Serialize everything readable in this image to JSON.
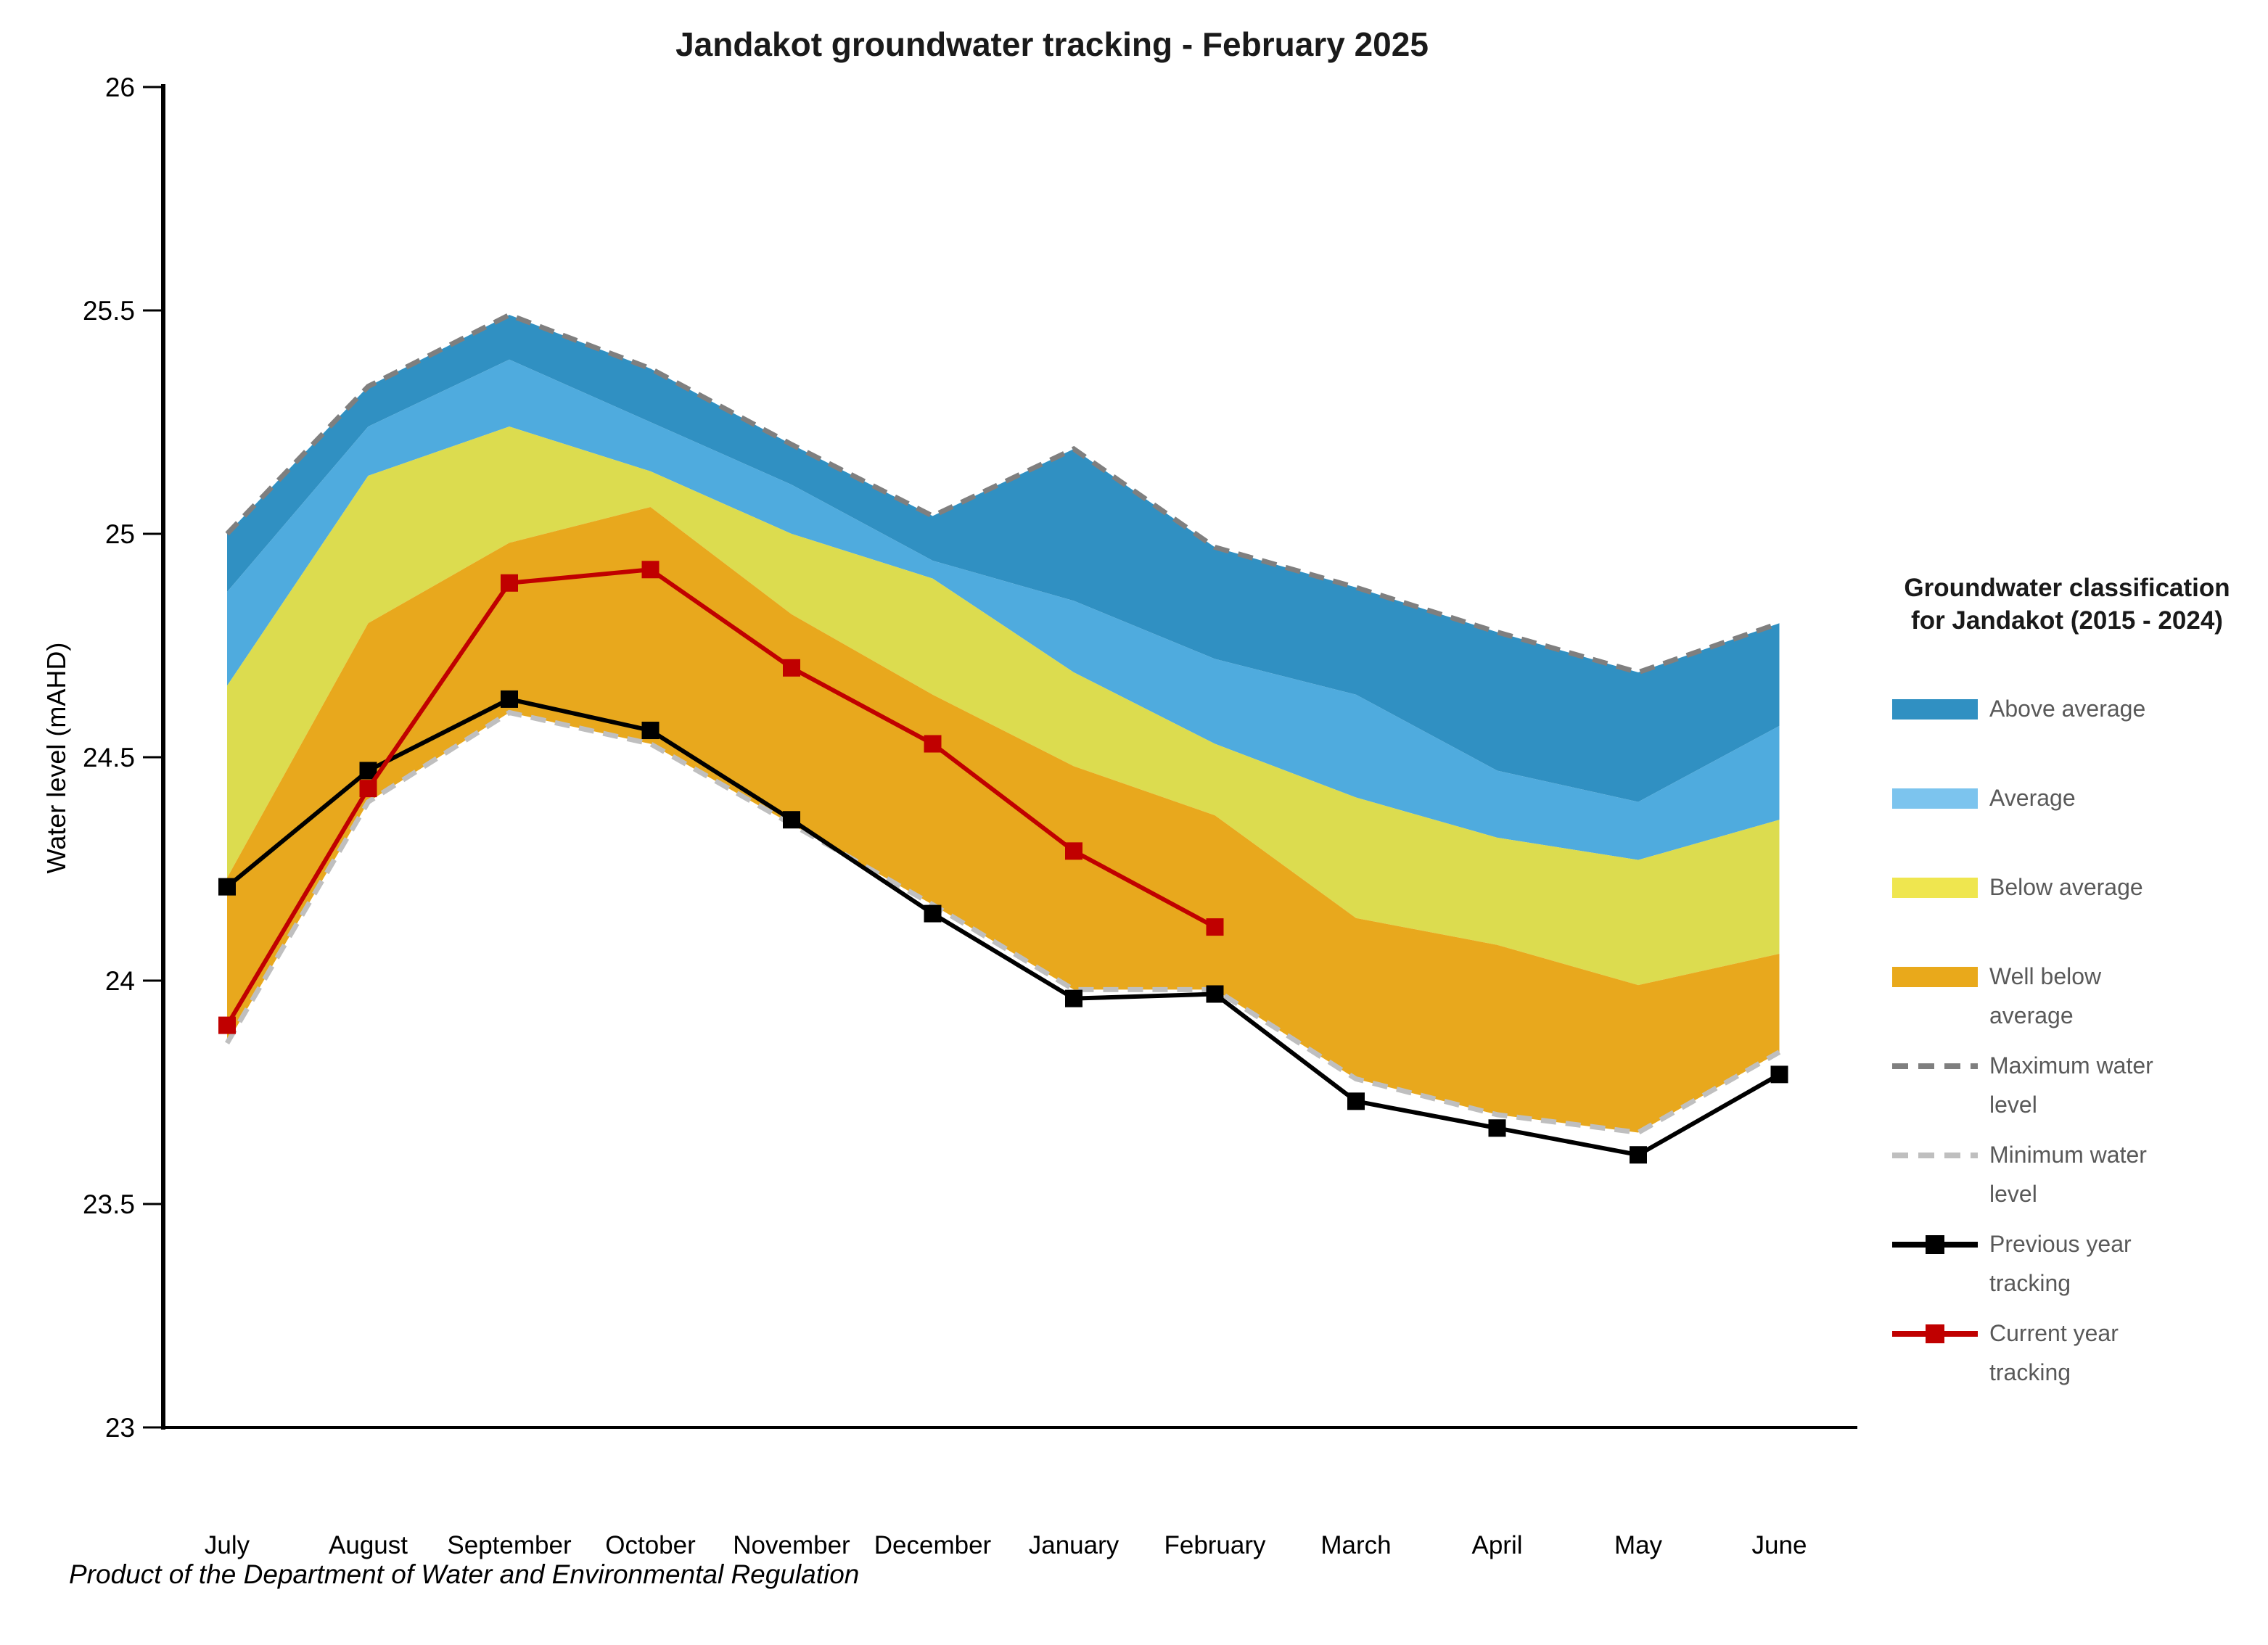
{
  "title": "Jandakot groundwater tracking - February 2025",
  "footer": "Product of the Department of Water and Environmental Regulation",
  "y_axis_label": "Water level (mAHD)",
  "legend": {
    "title_line1": "Groundwater classification",
    "title_line2": "for Jandakot (2015 - 2024)",
    "items": [
      {
        "label": "Above average",
        "swatch": "area",
        "color": "#3090C2"
      },
      {
        "label": "Average",
        "swatch": "area",
        "color": "#7CC4EE"
      },
      {
        "label": "Below average",
        "swatch": "area",
        "color": "#EFE64F"
      },
      {
        "label": "Well below average",
        "swatch": "area",
        "color": "#E9A91B"
      },
      {
        "label": "Maximum water level",
        "swatch": "dash",
        "color": "#7F7F7F"
      },
      {
        "label": "Minimum water level",
        "swatch": "dash",
        "color": "#BFBFBF"
      },
      {
        "label": "Previous year tracking",
        "swatch": "line-marker",
        "color": "#000000"
      },
      {
        "label": "Current year tracking",
        "swatch": "line-marker",
        "color": "#C00000"
      }
    ]
  },
  "chart_data": {
    "type": "area",
    "title": "Jandakot groundwater tracking - February 2025",
    "ylabel": "Water level (mAHD)",
    "ylim": [
      23,
      26
    ],
    "y_tick_step": 0.5,
    "grid": false,
    "legend_position": "right",
    "categories": [
      "July",
      "August",
      "September",
      "October",
      "November",
      "December",
      "January",
      "February",
      "March",
      "April",
      "May",
      "June"
    ],
    "boundaries": {
      "maximum": [
        25.0,
        25.33,
        25.49,
        25.37,
        25.2,
        25.04,
        25.19,
        24.97,
        24.88,
        24.78,
        24.69,
        24.8
      ],
      "above_average_lower": [
        24.87,
        25.24,
        25.39,
        25.25,
        25.11,
        24.94,
        24.85,
        24.72,
        24.64,
        24.47,
        24.4,
        24.57
      ],
      "average_lower": [
        24.66,
        25.13,
        25.24,
        25.14,
        25.0,
        24.9,
        24.69,
        24.53,
        24.41,
        24.32,
        24.27,
        24.36
      ],
      "below_average_lower": [
        24.23,
        24.8,
        24.98,
        25.06,
        24.82,
        24.64,
        24.48,
        24.37,
        24.14,
        24.08,
        23.99,
        24.06
      ],
      "minimum": [
        23.86,
        24.4,
        24.6,
        24.53,
        24.35,
        24.17,
        23.98,
        23.98,
        23.78,
        23.7,
        23.66,
        23.84
      ]
    },
    "bands": [
      {
        "name": "Above average",
        "color": "#3090C2",
        "top": "maximum",
        "bottom": "above_average_lower"
      },
      {
        "name": "Average",
        "color": "#4FABDE",
        "top": "above_average_lower",
        "bottom": "average_lower"
      },
      {
        "name": "Below average",
        "color": "#DCDC4F",
        "top": "average_lower",
        "bottom": "below_average_lower"
      },
      {
        "name": "Well below average",
        "color": "#E8A81D",
        "top": "below_average_lower",
        "bottom": "minimum"
      }
    ],
    "lines": [
      {
        "name": "Maximum water level",
        "color": "#7F7F7F",
        "style": "dashed",
        "boundary": "maximum"
      },
      {
        "name": "Minimum water level",
        "color": "#BFBFBF",
        "style": "dashed",
        "boundary": "minimum"
      },
      {
        "name": "Previous year tracking",
        "color": "#000000",
        "style": "marker",
        "values": [
          24.21,
          24.47,
          24.63,
          24.56,
          24.36,
          24.15,
          23.96,
          23.97,
          23.73,
          23.67,
          23.61,
          23.79
        ]
      },
      {
        "name": "Current year tracking",
        "color": "#C00000",
        "style": "marker",
        "values": [
          23.9,
          24.43,
          24.89,
          24.92,
          24.7,
          24.53,
          24.29,
          24.12
        ]
      }
    ]
  }
}
